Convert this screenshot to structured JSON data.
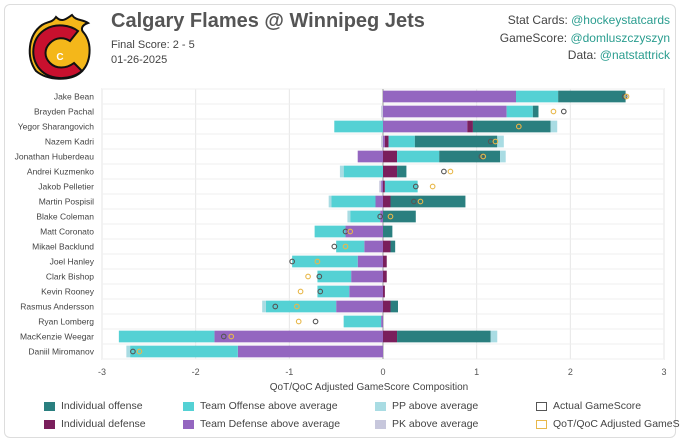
{
  "header": {
    "title": "Calgary Flames @ Winnipeg Jets",
    "score": "Final Score: 2 - 5",
    "date": "01-26-2025",
    "credits": [
      {
        "label": "Stat Cards: ",
        "handle": "@hockeystatcards"
      },
      {
        "label": "GameScore: ",
        "handle": "@domluszczyszyn"
      },
      {
        "label": "Data: ",
        "handle": "@natstattrick"
      }
    ]
  },
  "logo": {
    "name": "calgary-flames-logo",
    "letter": "C"
  },
  "colors": {
    "ind_off": "#2a7f7f",
    "ind_def": "#7a1f5c",
    "team_off": "#54d1d4",
    "team_def": "#9466c0",
    "pp": "#a9dce3",
    "pk": "#c7c7dc",
    "actual": "#555555",
    "adjusted": "#e8b84a"
  },
  "chart_data": {
    "type": "bar",
    "orientation": "horizontal",
    "stacked": true,
    "xlabel": "QoT/QoC Adjusted GameScore Composition",
    "xlim": [
      -3,
      3
    ],
    "xticks": [
      -3,
      -2,
      -1,
      0,
      1,
      2,
      3
    ],
    "categories": [
      "Jake Bean",
      "Brayden Pachal",
      "Yegor Sharangovich",
      "Nazem Kadri",
      "Jonathan Huberdeau",
      "Andrei Kuzmenko",
      "Jakob Pelletier",
      "Martin Pospisil",
      "Blake Coleman",
      "Matt Coronato",
      "Mikael Backlund",
      "Joel Hanley",
      "Clark Bishop",
      "Kevin Rooney",
      "Rasmus Andersson",
      "Ryan Lomberg",
      "MacKenzie Weegar",
      "Daniil Miromanov"
    ],
    "series": [
      {
        "name": "Team Defense above average",
        "values": [
          1.42,
          1.32,
          0.9,
          0.02,
          -0.27,
          0.0,
          -0.02,
          -0.08,
          -0.03,
          -0.4,
          -0.2,
          -0.27,
          -0.34,
          -0.36,
          -0.5,
          -0.02,
          -1.8,
          -1.55
        ]
      },
      {
        "name": "Individual defense",
        "values": [
          0,
          0,
          0.06,
          0.04,
          0.15,
          0.15,
          0.02,
          0.08,
          0,
          0,
          0.08,
          0.04,
          0.04,
          0.02,
          0.08,
          0,
          0.15,
          0
        ]
      },
      {
        "name": "PK above average",
        "values": [
          0,
          -0.02,
          0,
          -0.02,
          0,
          0,
          -0.02,
          0,
          0,
          0,
          0,
          0,
          0,
          0,
          0,
          0,
          0,
          0
        ]
      },
      {
        "name": "Team Offense above average",
        "values": [
          0.45,
          0.28,
          -0.52,
          0.28,
          0.45,
          -0.42,
          0.35,
          -0.47,
          -0.32,
          -0.33,
          -0.3,
          -0.7,
          -0.36,
          -0.34,
          -0.75,
          -0.4,
          -1.02,
          -1.15
        ]
      },
      {
        "name": "Individual offense",
        "values": [
          0.72,
          0.06,
          0.83,
          0.88,
          0.65,
          0.1,
          0,
          0.8,
          0.35,
          0.1,
          0.05,
          0,
          0,
          0,
          0.08,
          0,
          1.0,
          0
        ]
      },
      {
        "name": "PP above average",
        "values": [
          0,
          0,
          0.07,
          0.07,
          0.06,
          -0.04,
          0,
          -0.03,
          -0.03,
          0,
          0,
          0,
          0,
          0,
          -0.04,
          0,
          0.07,
          -0.04
        ]
      }
    ],
    "actual_gamescore": [
      2.58,
      1.93,
      1.45,
      1.15,
      1.05,
      0.65,
      0.35,
      0.33,
      -0.03,
      -0.4,
      -0.52,
      -0.97,
      -0.68,
      -0.67,
      -1.15,
      -0.72,
      -1.7,
      -2.67
    ],
    "adjusted_gamescore": [
      2.6,
      1.82,
      1.45,
      1.2,
      1.07,
      0.72,
      0.53,
      0.4,
      0.08,
      -0.35,
      -0.4,
      -0.7,
      -0.8,
      -0.88,
      -0.92,
      -0.9,
      -1.62,
      -2.6
    ],
    "legend": [
      {
        "key": "ind_off",
        "label": "Individual offense",
        "style": "fill"
      },
      {
        "key": "team_off",
        "label": "Team Offense above average",
        "style": "fill"
      },
      {
        "key": "pp",
        "label": "PP above average",
        "style": "fill"
      },
      {
        "key": "actual",
        "label": "Actual GameScore",
        "style": "outline"
      },
      {
        "key": "ind_def",
        "label": "Individual defense",
        "style": "fill"
      },
      {
        "key": "team_def",
        "label": "Team Defense above average",
        "style": "fill"
      },
      {
        "key": "pk",
        "label": "PK above average",
        "style": "fill"
      },
      {
        "key": "adjusted",
        "label": "QoT/QoC Adjusted GameScore",
        "style": "outline"
      }
    ]
  }
}
